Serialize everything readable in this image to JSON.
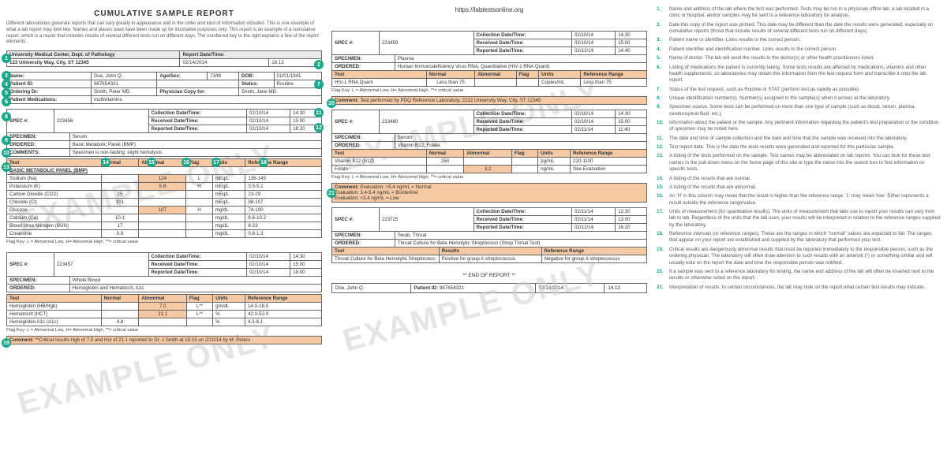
{
  "url": "https://labtestsonline.org",
  "title": "CUMULATIVE SAMPLE REPORT",
  "intro": "Different laboratories generate reports that can vary greatly in appearance and in the order and kind of information included. This is one example of what a lab report may look like. Names and places used have been made up for illustrative purposes only. This report is an example of a cumulative report, which is a report that includes results of several different tests run on different days. The numbered key to the right explains a few of the report elements.",
  "watermark": "EXAMPLE ONLY",
  "labHeader": {
    "line1": "University Medical Center, Dept. of Pathology",
    "line2": "123 University Way, City, ST 12345",
    "reportLabel": "Report Date/Time:",
    "reportDate": "02/14/2014",
    "reportTime": "16:13"
  },
  "patient": {
    "nameLabel": "Name:",
    "name": "Doe, John Q.",
    "ageSexLabel": "Age/Sex:",
    "ageSex": "73/M",
    "dobLabel": "DOB:",
    "dob": "01/01/1941",
    "pidLabel": "Patient ID:",
    "pid": "987654321",
    "statusLabel": "Status:",
    "status": "Routine",
    "orderDrLabel": "Ordering Dr:",
    "orderDr": "Smith, Peter MD",
    "physCopyLabel": "Physician Copy for:",
    "physCopy": "Smith, Jane MD",
    "medsLabel": "Patient Medications:",
    "meds": "multivitamins"
  },
  "dateLabels": {
    "coll": "Collection Date/Time:",
    "recv": "Received Date/Time:",
    "rep": "Reported Date/Time:"
  },
  "specLabel": "SPEC #:",
  "specimenLabel": "SPECIMEN:",
  "orderedLabel": "ORDERED:",
  "commentsLabel": "COMMENTS:",
  "testHead": {
    "test": "Test",
    "normal": "Normal",
    "abnormal": "Abnormal",
    "flag": "Flag",
    "units": "Units",
    "ref": "Reference Range",
    "results": "Results"
  },
  "flagKey": "Flag Key: L = Abnormal Low, H= Abnormal High, **= critical value",
  "panel1": {
    "spec": "223456",
    "coll": "02/10/14",
    "collT": "14:30",
    "recv": "02/10/14",
    "recvT": "15:00",
    "rep": "02/10/14",
    "repT": "18:20",
    "specimen": "Serum",
    "ordered": "Basic Metabolic Panel (BMP)",
    "comments": "Specimen is non-fasting: slight hemolysis",
    "groupTitle": "BASIC METABOLIC PANEL (BMP)",
    "rows": [
      {
        "t": "Sodium (Na)",
        "n": "",
        "a": "124",
        "f": "L",
        "u": "mEq/L",
        "r": "136-145"
      },
      {
        "t": "Potassium (K)",
        "n": "",
        "a": "5.8",
        "f": "H",
        "u": "mEq/L",
        "r": "3.5-5.1"
      },
      {
        "t": "Carbon Dioxide (CO2)",
        "n": "25",
        "a": "",
        "f": "",
        "u": "mEq/L",
        "r": "23-29"
      },
      {
        "t": "Chloride (Cl)",
        "n": "101",
        "a": "",
        "f": "",
        "u": "mEq/L",
        "r": "98-107"
      },
      {
        "t": "Glucose",
        "n": "",
        "a": "107",
        "f": "H",
        "u": "mg/dL",
        "r": "74-100"
      },
      {
        "t": "Calcium (Ca)",
        "n": "10.1",
        "a": "",
        "f": "",
        "u": "mg/dL",
        "r": "8.6-10.2"
      },
      {
        "t": "Blood Urea Nitrogen (BUN)",
        "n": "17",
        "a": "",
        "f": "",
        "u": "mg/dL",
        "r": "8-23"
      },
      {
        "t": "Creatinine",
        "n": "0.9",
        "a": "",
        "f": "",
        "u": "mg/dL",
        "r": "0.8-1.3"
      }
    ]
  },
  "panel2": {
    "spec": "223457",
    "coll": "02/10/14",
    "collT": "14:30",
    "recv": "02/10/14",
    "recvT": "15:00",
    "rep": "02/10/14",
    "repT": "18:00",
    "specimen": "Whole Blood",
    "ordered": "Hemoglobin and Hematocrit, A1c",
    "rows": [
      {
        "t": "Hemoglobin (HB/Hgb)",
        "n": "",
        "a": "7.0",
        "f": "L**",
        "u": "gm/dL",
        "r": "14.0-18.0"
      },
      {
        "t": "Hematocrit (HCT)",
        "n": "",
        "a": "21.1",
        "f": "L**",
        "u": "%",
        "r": "42.0-52.0"
      },
      {
        "t": "Hemoglobin A1c (A1c)",
        "n": "4.8",
        "a": "",
        "f": "",
        "u": "%",
        "r": "4.3-6.1"
      }
    ],
    "comment": "**Critical results Hgb of 7.0 and Hct of 21.1 reported to Dr. J Smith at 15:15 on 2/10/14 by M. Peters"
  },
  "panel3": {
    "spec": "223459",
    "coll": "02/10/14",
    "collT": "14:30",
    "recv": "02/10/14",
    "recvT": "15:00",
    "rep": "02/12/14",
    "repT": "14:40",
    "specimen": "Plasma",
    "ordered": "Human Immunodeficiency Virus RNA, Quantitative (HIV-1 RNA Quant)",
    "rows": [
      {
        "t": "HIV-1 RNA Quant",
        "n": "Less than 75",
        "a": "",
        "f": "",
        "u": "Copies/mL",
        "r": "Less than 75"
      }
    ],
    "comment": "Test performed by PDQ Reference Laboratory, 2222 University Way, City, ST 12345"
  },
  "panel4": {
    "spec": "223460",
    "coll": "02/10/14",
    "collT": "14:30",
    "recv": "02/10/14",
    "recvT": "15:00",
    "rep": "02/11/14",
    "repT": "11:40",
    "specimen": "Serum",
    "ordered": "Vitamin B12, Folate",
    "rows": [
      {
        "t": "Vitamin B12 (B12)",
        "n": "250",
        "a": "",
        "f": "",
        "u": "pg/mL",
        "r": "210-1100"
      },
      {
        "t": "Folate",
        "n": "",
        "a": "3.2",
        "f": "",
        "u": "ng/mL",
        "r": "See Evaluation"
      }
    ],
    "comment": "Evaluation: >5.4 ng/mL = Normal\nEvaluation: 3.4-5.4 ng/mL = Borderline\nEvaluation: <3.4 ng/mL = Low"
  },
  "panel5": {
    "spec": "223725",
    "coll": "02/11/14",
    "collT": "12:30",
    "recv": "02/11/14",
    "recvT": "13:00",
    "rep": "02/12/14",
    "repT": "16:20",
    "specimen": "Swab, Throat",
    "ordered": "Throat Culture for Beta Hemolytic Streptococci (Strep Throat Test)",
    "rows": [
      {
        "t": "Throat Culture for Beta Hemolytic Streptococci",
        "res": "Positive for group A streptococcus",
        "r": "Negative for group A streptococcus"
      }
    ]
  },
  "endOfReport": "** END OF REPORT **",
  "footer": {
    "name": "Doe, John Q.",
    "pidLabel": "Patient ID:",
    "pid": "987654321",
    "date": "02/14/2014",
    "time": "16:13"
  },
  "key": [
    "Name and address of the lab where the test was performed. Tests may be run in a physician office lab, a lab located in a clinic or hospital, and/or samples may be sent to a reference laboratory for analysis.",
    "Date this copy of the report was printed. This date may be different than the date the results were generated, especially on cumulative reports (those that include results of several different tests run on different days).",
    "Patient name or identifier. Links results to the correct person.",
    "Patient identifier and identification number. Links results to the correct person.",
    "Name of doctor. The lab will send the results to the doctor(s) or other health practitioners listed.",
    "Listing of medications the patient is currently taking. Some tests results are affected by medications, vitamins and other health supplements, so laboratories may obtain this information from the test request form and transcribe it onto the lab report.",
    "Status of the test request, such as Routine or STAT (perform test as rapidly as possible).",
    "Unique identification number(s). Number(s) assigned to the sample(s) when it arrives at the laboratory.",
    "Specimen source. Some tests can be performed on more than one type of sample (such as blood, serum, plasma, cerebrospinal fluid, etc.).",
    "Information about the patient or the sample. Any pertinent information regarding the patient's test preparation or the condition of specimen may be noted here.",
    "The date and time of sample collection and the date and time that the sample was received into the laboratory.",
    "Test report date. This is the date the tests results were generated and reported for this particular sample.",
    "A listing of the tests performed on the sample. Test names may be abbreviated on lab reports. You can look for these test names in the pull-down menu on the home page of this site or type the name into the search box to find information on specific tests.",
    "A listing of the results that are normal.",
    "A listing of the results that are abnormal.",
    "An 'H' in this column may mean that the result is higher than the reference range. 'L' may mean 'low.' Either represents a result outside the reference range/value.",
    "Units of measurement (for quantitative results). The units of measurement that labs use to report your results can vary from lab to lab. Regardless of the units that the lab uses, your results will be interpreted in relation to the reference ranges supplied by the laboratory.",
    "Reference intervals (or reference ranges). These are the ranges in which \"normal\" values are expected to fall. The ranges that appear on your report are established and supplied by the laboratory that performed your test.",
    "Critical results are dangerously abnormal results that must be reported immediately to the responsible person, such as the ordering physician. The laboratory will often draw attention to such results with an asterisk (*) or something similar and will usually note on the report the date and time the responsible person was notified.",
    "If a sample was sent to a reference laboratory for testing, the name and address of the lab will often be inserted next to the results or otherwise noted on the report.",
    "Interpretation of results. In certain circumstances, the lab may note on the report what certain test results may indicate."
  ]
}
